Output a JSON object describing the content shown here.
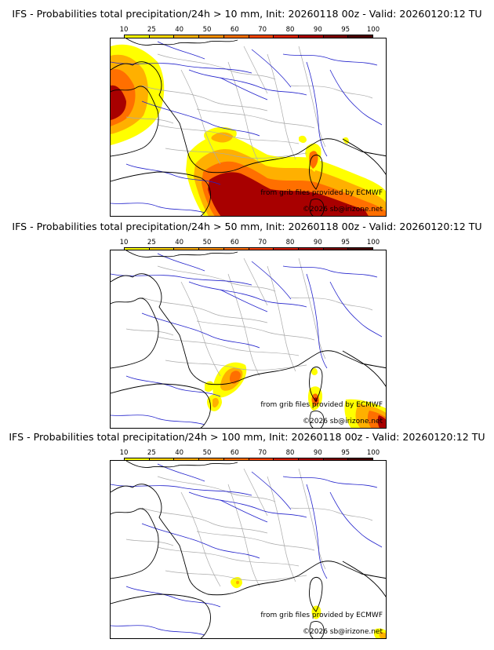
{
  "legend": {
    "ticks": [
      "10",
      "25",
      "40",
      "50",
      "60",
      "70",
      "80",
      "90",
      "95",
      "100"
    ],
    "colors": [
      "#ffff00",
      "#ffd700",
      "#ffb000",
      "#ff9000",
      "#ff6f00",
      "#ff4500",
      "#d92000",
      "#a80000",
      "#7a0000",
      "#4a0000"
    ]
  },
  "panels": [
    {
      "title": "IFS - Probabilities total precipitation/24h > 10 mm, Init: 20260118 00z - Valid: 20260120:12 TU",
      "credit_source": "from grib files provided by ECMWF",
      "credit_copyright": "©2026 sb@irizone.net"
    },
    {
      "title": "IFS - Probabilities total precipitation/24h > 50 mm, Init: 20260118 00z - Valid: 20260120:12 TU",
      "credit_source": "from grib files provided by ECMWF",
      "credit_copyright": "©2026 sb@irizone.net"
    },
    {
      "title": "IFS - Probabilities total precipitation/24h > 100 mm, Init: 20260118 00z - Valid: 20260120:12 TU",
      "credit_source": "from grib files provided by ECMWF",
      "credit_copyright": "©2026 sb@irizone.net"
    }
  ],
  "colors": {
    "coastline": "#000000",
    "borders": "#aaaaaa",
    "rivers": "#2222cc"
  }
}
